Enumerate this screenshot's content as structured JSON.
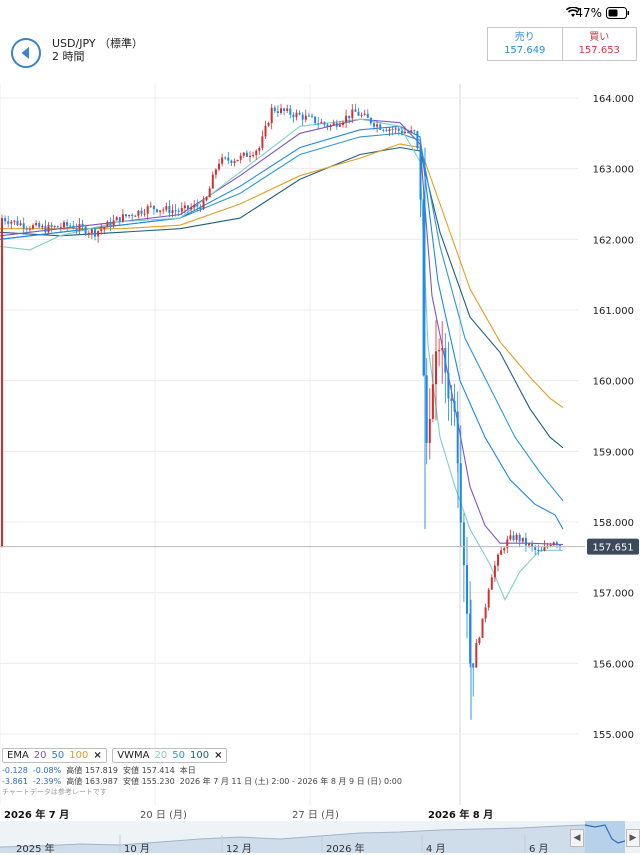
{
  "status": {
    "battery": "47%"
  },
  "header": {
    "pair": "USD/JPY （標準）",
    "timeframe": "2 時間",
    "sell_label": "売り",
    "sell_price": "157.649",
    "buy_label": "買い",
    "buy_price": "157.653"
  },
  "colors": {
    "up": "#d32f2f",
    "down": "#1e88e5",
    "accent": "#3a84c8",
    "price_tag": "#3c4a5c"
  },
  "chart_data": {
    "type": "candlestick",
    "y_ticks": [
      "164.000",
      "163.000",
      "162.000",
      "161.000",
      "160.000",
      "159.000",
      "158.000",
      "157.000",
      "156.000",
      "155.000"
    ],
    "ylim": [
      154.7,
      164.7
    ],
    "current_price": "157.651",
    "x_labels": [
      "2026 年 7 月",
      "20 日 (月)",
      "27 日 (月)",
      "2026 年 8 月"
    ],
    "grid": true,
    "series": [
      {
        "name": "EMA 20",
        "color": "#7e57c2"
      },
      {
        "name": "EMA 50",
        "color": "#1e88e5"
      },
      {
        "name": "EMA 100",
        "color": "#e0a020"
      },
      {
        "name": "VWMA 20",
        "color": "#7fd0c8"
      },
      {
        "name": "VWMA 50",
        "color": "#2e9ad0"
      },
      {
        "name": "VWMA 100",
        "color": "#20607e"
      }
    ]
  },
  "indicators": {
    "ema": {
      "label": "EMA",
      "p1": "20",
      "p2": "50",
      "p3": "100",
      "close": "×"
    },
    "vwma": {
      "label": "VWMA",
      "p1": "20",
      "p2": "50",
      "p3": "100",
      "close": "×"
    },
    "row1": {
      "chg": "-0.128",
      "pct": "-0.08%",
      "high_label": "高値",
      "high": "157.819",
      "low_label": "安値",
      "low": "157.414",
      "period": "本日"
    },
    "row2": {
      "chg": "-3.861",
      "pct": "-2.39%",
      "high_label": "高値",
      "high": "163.987",
      "low_label": "安値",
      "low": "155.230",
      "period": "2026 年 7 月 11 日 (土) 2:00 - 2026 年 8 月 9 日 (日) 0:00"
    },
    "note": "チャートデータは参考レートです"
  },
  "overview": {
    "labels": [
      "2025 年",
      "10 月",
      "12 月",
      "2026 年",
      "4 月",
      "6 月"
    ],
    "left_arrow": "◀",
    "right_arrow": "▶"
  }
}
